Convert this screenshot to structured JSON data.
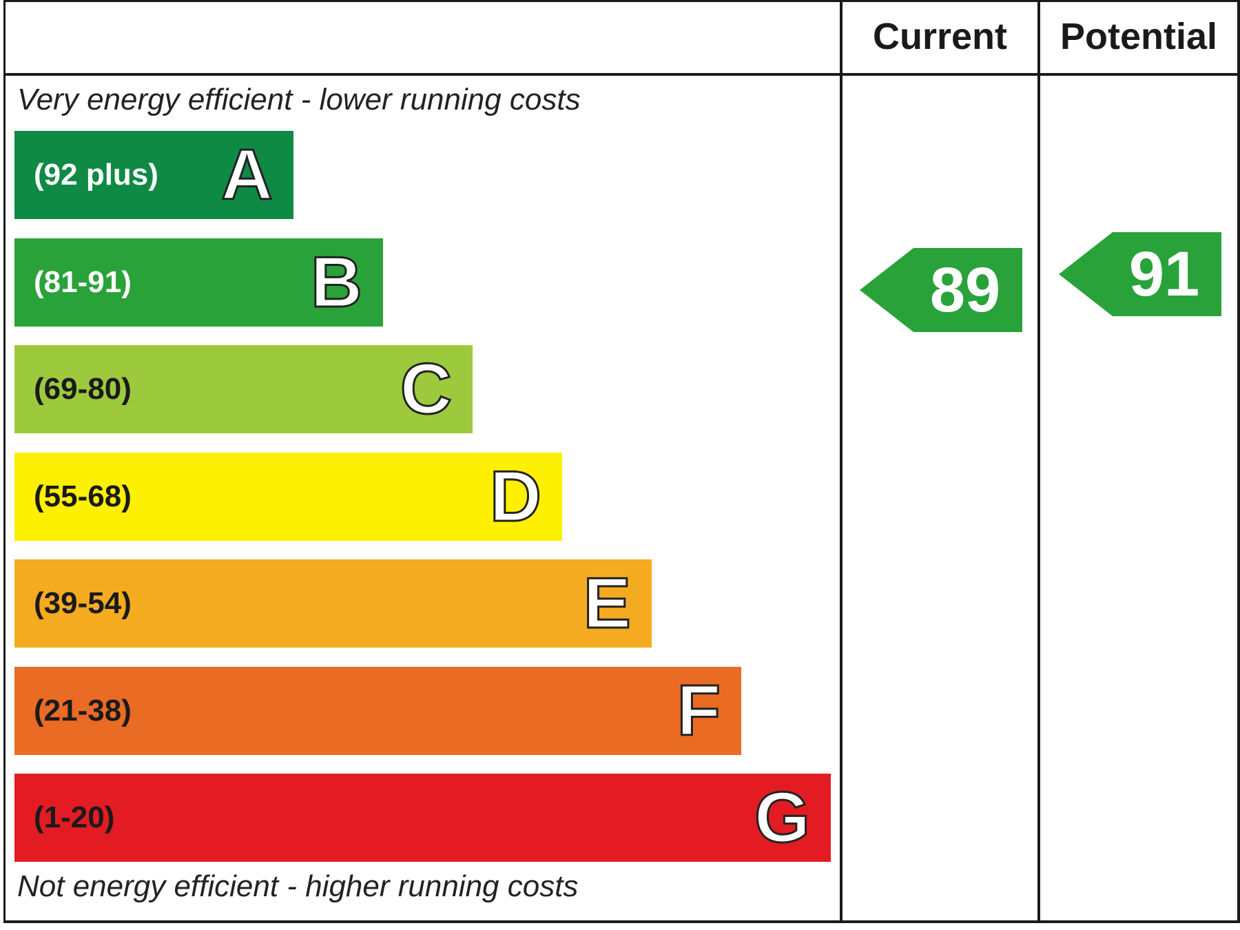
{
  "header": {
    "current": "Current",
    "potential": "Potential"
  },
  "captions": {
    "top": "Very energy efficient - lower running costs",
    "bottom": "Not energy efficient - higher running costs"
  },
  "chart_data": {
    "type": "bar",
    "categories": [
      "A",
      "B",
      "C",
      "D",
      "E",
      "F",
      "G"
    ],
    "bands": [
      {
        "letter": "A",
        "range": "(92 plus)",
        "min": 92,
        "max": 100,
        "color": "#0f8a45",
        "text_color": "#ffffff"
      },
      {
        "letter": "B",
        "range": "(81-91)",
        "min": 81,
        "max": 91,
        "color": "#2aa23a",
        "text_color": "#ffffff"
      },
      {
        "letter": "C",
        "range": "(69-80)",
        "min": 69,
        "max": 80,
        "color": "#9dca3c",
        "text_color": "#1a1a1a"
      },
      {
        "letter": "D",
        "range": "(55-68)",
        "min": 55,
        "max": 68,
        "color": "#fdf000",
        "text_color": "#1a1a1a"
      },
      {
        "letter": "E",
        "range": "(39-54)",
        "min": 39,
        "max": 54,
        "color": "#f5ab1f",
        "text_color": "#1a1a1a"
      },
      {
        "letter": "F",
        "range": "(21-38)",
        "min": 21,
        "max": 38,
        "color": "#ea6b23",
        "text_color": "#1a1a1a"
      },
      {
        "letter": "G",
        "range": "(1-20)",
        "min": 1,
        "max": 20,
        "color": "#e21c22",
        "text_color": "#1a1a1a"
      }
    ],
    "ratings": [
      {
        "name": "Current",
        "value": 89,
        "band": "B",
        "color": "#2aa23a"
      },
      {
        "name": "Potential",
        "value": 91,
        "band": "B",
        "color": "#2aa23a"
      }
    ]
  }
}
